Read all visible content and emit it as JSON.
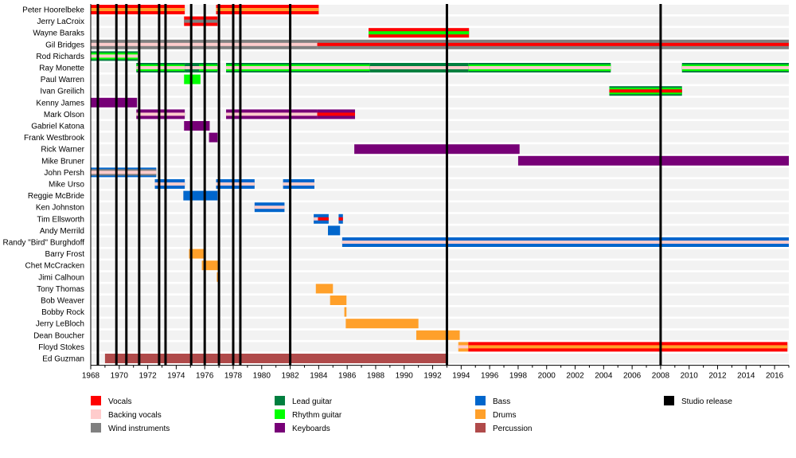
{
  "chart_data": {
    "type": "timeline",
    "title": "",
    "xlabel": "",
    "ylabel": "",
    "xlim": [
      1968,
      2017
    ],
    "xticks": [
      1968,
      1970,
      1972,
      1974,
      1976,
      1978,
      1980,
      1982,
      1984,
      1986,
      1988,
      1990,
      1992,
      1994,
      1996,
      1998,
      2000,
      2002,
      2004,
      2006,
      2008,
      2010,
      2012,
      2014,
      2016
    ],
    "grid": false,
    "legend_placement": "bottom",
    "roles": {
      "vocals": {
        "label": "Vocals",
        "color": "#ff0000"
      },
      "backing": {
        "label": "Backing vocals",
        "color": "#ffcccc"
      },
      "wind": {
        "label": "Wind instruments",
        "color": "#808080"
      },
      "lead": {
        "label": "Lead guitar",
        "color": "#007f3f"
      },
      "rhythm": {
        "label": "Rhythm guitar",
        "color": "#00ff00"
      },
      "keys": {
        "label": "Keyboards",
        "color": "#770077"
      },
      "bass": {
        "label": "Bass",
        "color": "#0066cc"
      },
      "drums": {
        "label": "Drums",
        "color": "#ffa02a"
      },
      "perc": {
        "label": "Percussion",
        "color": "#b04a4a"
      },
      "release": {
        "label": "Studio release",
        "color": "#000000"
      }
    },
    "legend_columns": [
      [
        "vocals",
        "backing",
        "wind"
      ],
      [
        "lead",
        "rhythm",
        "keys"
      ],
      [
        "bass",
        "drums",
        "perc"
      ],
      [
        "release"
      ]
    ],
    "studio_releases": [
      1968.5,
      1969.8,
      1970.5,
      1971.4,
      1972.8,
      1973.25,
      1975.05,
      1976.0,
      1977.0,
      1978.0,
      1978.5,
      1982.0,
      1993.0,
      2008.0
    ],
    "members": [
      {
        "name": "Peter Hoorelbeke",
        "spans": [
          {
            "start": 1968.0,
            "end": 1974.6,
            "layers": [
              "vocals",
              "drums"
            ]
          },
          {
            "start": 1976.8,
            "end": 1984.0,
            "layers": [
              "vocals",
              "drums"
            ]
          }
        ]
      },
      {
        "name": "Jerry LaCroix",
        "spans": [
          {
            "start": 1974.55,
            "end": 1976.9,
            "layers": [
              "vocals",
              "wind"
            ]
          }
        ]
      },
      {
        "name": "Wayne Baraks",
        "spans": [
          {
            "start": 1987.5,
            "end": 1994.55,
            "layers": [
              "vocals",
              "rhythm"
            ]
          }
        ]
      },
      {
        "name": "Gil Bridges",
        "spans": [
          {
            "start": 1968.0,
            "end": 1983.9,
            "layers": [
              "wind",
              "backing"
            ]
          },
          {
            "start": 1983.9,
            "end": 2017.0,
            "layers": [
              "wind",
              "vocals"
            ]
          }
        ]
      },
      {
        "name": "Rod Richards",
        "spans": [
          {
            "start": 1968.0,
            "end": 1971.3,
            "layers": [
              "lead",
              "rhythm",
              "backing"
            ]
          }
        ]
      },
      {
        "name": "Ray Monette",
        "spans": [
          {
            "start": 1971.2,
            "end": 1974.6,
            "layers": [
              "lead",
              "rhythm",
              "backing"
            ]
          },
          {
            "start": 1974.6,
            "end": 1975.6,
            "layers": [
              "lead",
              "lead",
              "backing"
            ]
          },
          {
            "start": 1975.6,
            "end": 1976.9,
            "layers": [
              "lead",
              "rhythm",
              "backing"
            ]
          },
          {
            "start": 1977.5,
            "end": 1987.6,
            "layers": [
              "lead",
              "rhythm",
              "backing"
            ]
          },
          {
            "start": 1987.6,
            "end": 1994.5,
            "layers": [
              "lead",
              "lead",
              "backing"
            ]
          },
          {
            "start": 1994.5,
            "end": 2004.5,
            "layers": [
              "lead",
              "rhythm",
              "backing"
            ]
          },
          {
            "start": 2009.5,
            "end": 2017.0,
            "layers": [
              "lead",
              "rhythm",
              "backing"
            ]
          }
        ]
      },
      {
        "name": "Paul Warren",
        "spans": [
          {
            "start": 1974.55,
            "end": 1975.7,
            "layers": [
              "rhythm"
            ]
          }
        ]
      },
      {
        "name": "Ivan Greilich",
        "spans": [
          {
            "start": 2004.4,
            "end": 2009.5,
            "layers": [
              "lead",
              "rhythm",
              "vocals"
            ]
          }
        ]
      },
      {
        "name": "Kenny James",
        "spans": [
          {
            "start": 1968.0,
            "end": 1971.25,
            "layers": [
              "keys"
            ]
          }
        ]
      },
      {
        "name": "Mark Olson",
        "spans": [
          {
            "start": 1971.2,
            "end": 1974.6,
            "layers": [
              "keys",
              "backing"
            ]
          },
          {
            "start": 1977.5,
            "end": 1983.9,
            "layers": [
              "keys",
              "backing"
            ]
          },
          {
            "start": 1983.9,
            "end": 1986.55,
            "layers": [
              "keys",
              "vocals"
            ]
          }
        ]
      },
      {
        "name": "Gabriel Katona",
        "spans": [
          {
            "start": 1974.55,
            "end": 1976.35,
            "layers": [
              "keys"
            ]
          }
        ]
      },
      {
        "name": "Frank Westbrook",
        "spans": [
          {
            "start": 1976.3,
            "end": 1976.9,
            "layers": [
              "keys"
            ]
          }
        ]
      },
      {
        "name": "Rick Warner",
        "spans": [
          {
            "start": 1986.5,
            "end": 1998.1,
            "layers": [
              "keys"
            ]
          }
        ]
      },
      {
        "name": "Mike Bruner",
        "spans": [
          {
            "start": 1998.0,
            "end": 2017.0,
            "layers": [
              "keys"
            ]
          }
        ]
      },
      {
        "name": "John Persh",
        "spans": [
          {
            "start": 1968.0,
            "end": 1972.6,
            "layers": [
              "bass",
              "wind",
              "backing"
            ]
          }
        ]
      },
      {
        "name": "Mike Urso",
        "spans": [
          {
            "start": 1972.5,
            "end": 1974.6,
            "layers": [
              "bass",
              "backing"
            ]
          },
          {
            "start": 1976.8,
            "end": 1979.5,
            "layers": [
              "bass",
              "backing"
            ]
          },
          {
            "start": 1981.5,
            "end": 1983.7,
            "layers": [
              "bass",
              "backing"
            ]
          }
        ]
      },
      {
        "name": "Reggie McBride",
        "spans": [
          {
            "start": 1974.5,
            "end": 1976.9,
            "layers": [
              "bass"
            ]
          }
        ]
      },
      {
        "name": "Ken Johnston",
        "spans": [
          {
            "start": 1979.5,
            "end": 1981.6,
            "layers": [
              "bass",
              "backing"
            ]
          }
        ]
      },
      {
        "name": "Tim Ellsworth",
        "spans": [
          {
            "start": 1983.65,
            "end": 1983.95,
            "layers": [
              "bass",
              "backing"
            ]
          },
          {
            "start": 1983.95,
            "end": 1984.7,
            "layers": [
              "bass",
              "vocals"
            ]
          },
          {
            "start": 1985.4,
            "end": 1985.7,
            "layers": [
              "bass",
              "vocals"
            ]
          }
        ]
      },
      {
        "name": "Andy Merrild",
        "spans": [
          {
            "start": 1984.65,
            "end": 1985.5,
            "layers": [
              "bass"
            ]
          }
        ]
      },
      {
        "name": "Randy \"Bird\" Burghdoff",
        "spans": [
          {
            "start": 1985.65,
            "end": 2017.0,
            "layers": [
              "bass",
              "backing"
            ]
          }
        ]
      },
      {
        "name": "Barry Frost",
        "spans": [
          {
            "start": 1974.9,
            "end": 1976.0,
            "layers": [
              "drums"
            ]
          }
        ]
      },
      {
        "name": "Chet McCracken",
        "spans": [
          {
            "start": 1975.8,
            "end": 1977.0,
            "layers": [
              "drums"
            ]
          }
        ]
      },
      {
        "name": "Jimi Calhoun",
        "spans": [
          {
            "start": 1976.85,
            "end": 1977.0,
            "layers": [
              "drums"
            ]
          }
        ]
      },
      {
        "name": "Tony Thomas",
        "spans": [
          {
            "start": 1983.8,
            "end": 1985.0,
            "layers": [
              "drums"
            ]
          }
        ]
      },
      {
        "name": "Bob Weaver",
        "spans": [
          {
            "start": 1984.8,
            "end": 1985.95,
            "layers": [
              "drums"
            ]
          }
        ]
      },
      {
        "name": "Bobby Rock",
        "spans": [
          {
            "start": 1985.8,
            "end": 1985.95,
            "layers": [
              "drums"
            ]
          }
        ]
      },
      {
        "name": "Jerry LeBloch",
        "spans": [
          {
            "start": 1985.9,
            "end": 1991.0,
            "layers": [
              "drums"
            ]
          }
        ]
      },
      {
        "name": "Dean Boucher",
        "spans": [
          {
            "start": 1990.85,
            "end": 1993.9,
            "layers": [
              "drums"
            ]
          }
        ]
      },
      {
        "name": "Floyd Stokes",
        "spans": [
          {
            "start": 1993.8,
            "end": 1994.5,
            "layers": [
              "drums",
              "backing"
            ]
          },
          {
            "start": 1994.5,
            "end": 2016.9,
            "layers": [
              "vocals",
              "drums"
            ]
          }
        ]
      },
      {
        "name": "Ed Guzman",
        "spans": [
          {
            "start": 1969.0,
            "end": 1993.0,
            "layers": [
              "perc"
            ]
          }
        ]
      }
    ]
  }
}
